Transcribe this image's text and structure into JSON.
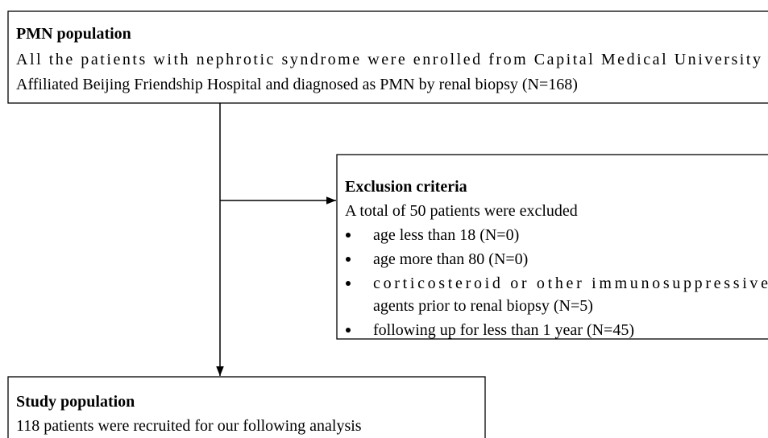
{
  "nodes": [
    {
      "title": "PMN population",
      "lines": [
        "All the patients with nephrotic syndrome were enrolled from Capital Medical University",
        "Affiliated Beijing Friendship Hospital and diagnosed as PMN by renal biopsy (N=168)"
      ]
    },
    {
      "title": "Exclusion criteria",
      "lines": [
        "A total of 50 patients were excluded"
      ],
      "bullets": [
        [
          "age less than 18 (N=0)"
        ],
        [
          "age more than 80 (N=0)"
        ],
        [
          "corticosteroid or other immunosuppressive",
          "agents prior to renal biopsy (N=5)"
        ],
        [
          "following up for less than 1 year (N=45)"
        ]
      ]
    },
    {
      "title": "Study population",
      "lines": [
        "118 patients were recruited for our following analysis"
      ]
    }
  ]
}
